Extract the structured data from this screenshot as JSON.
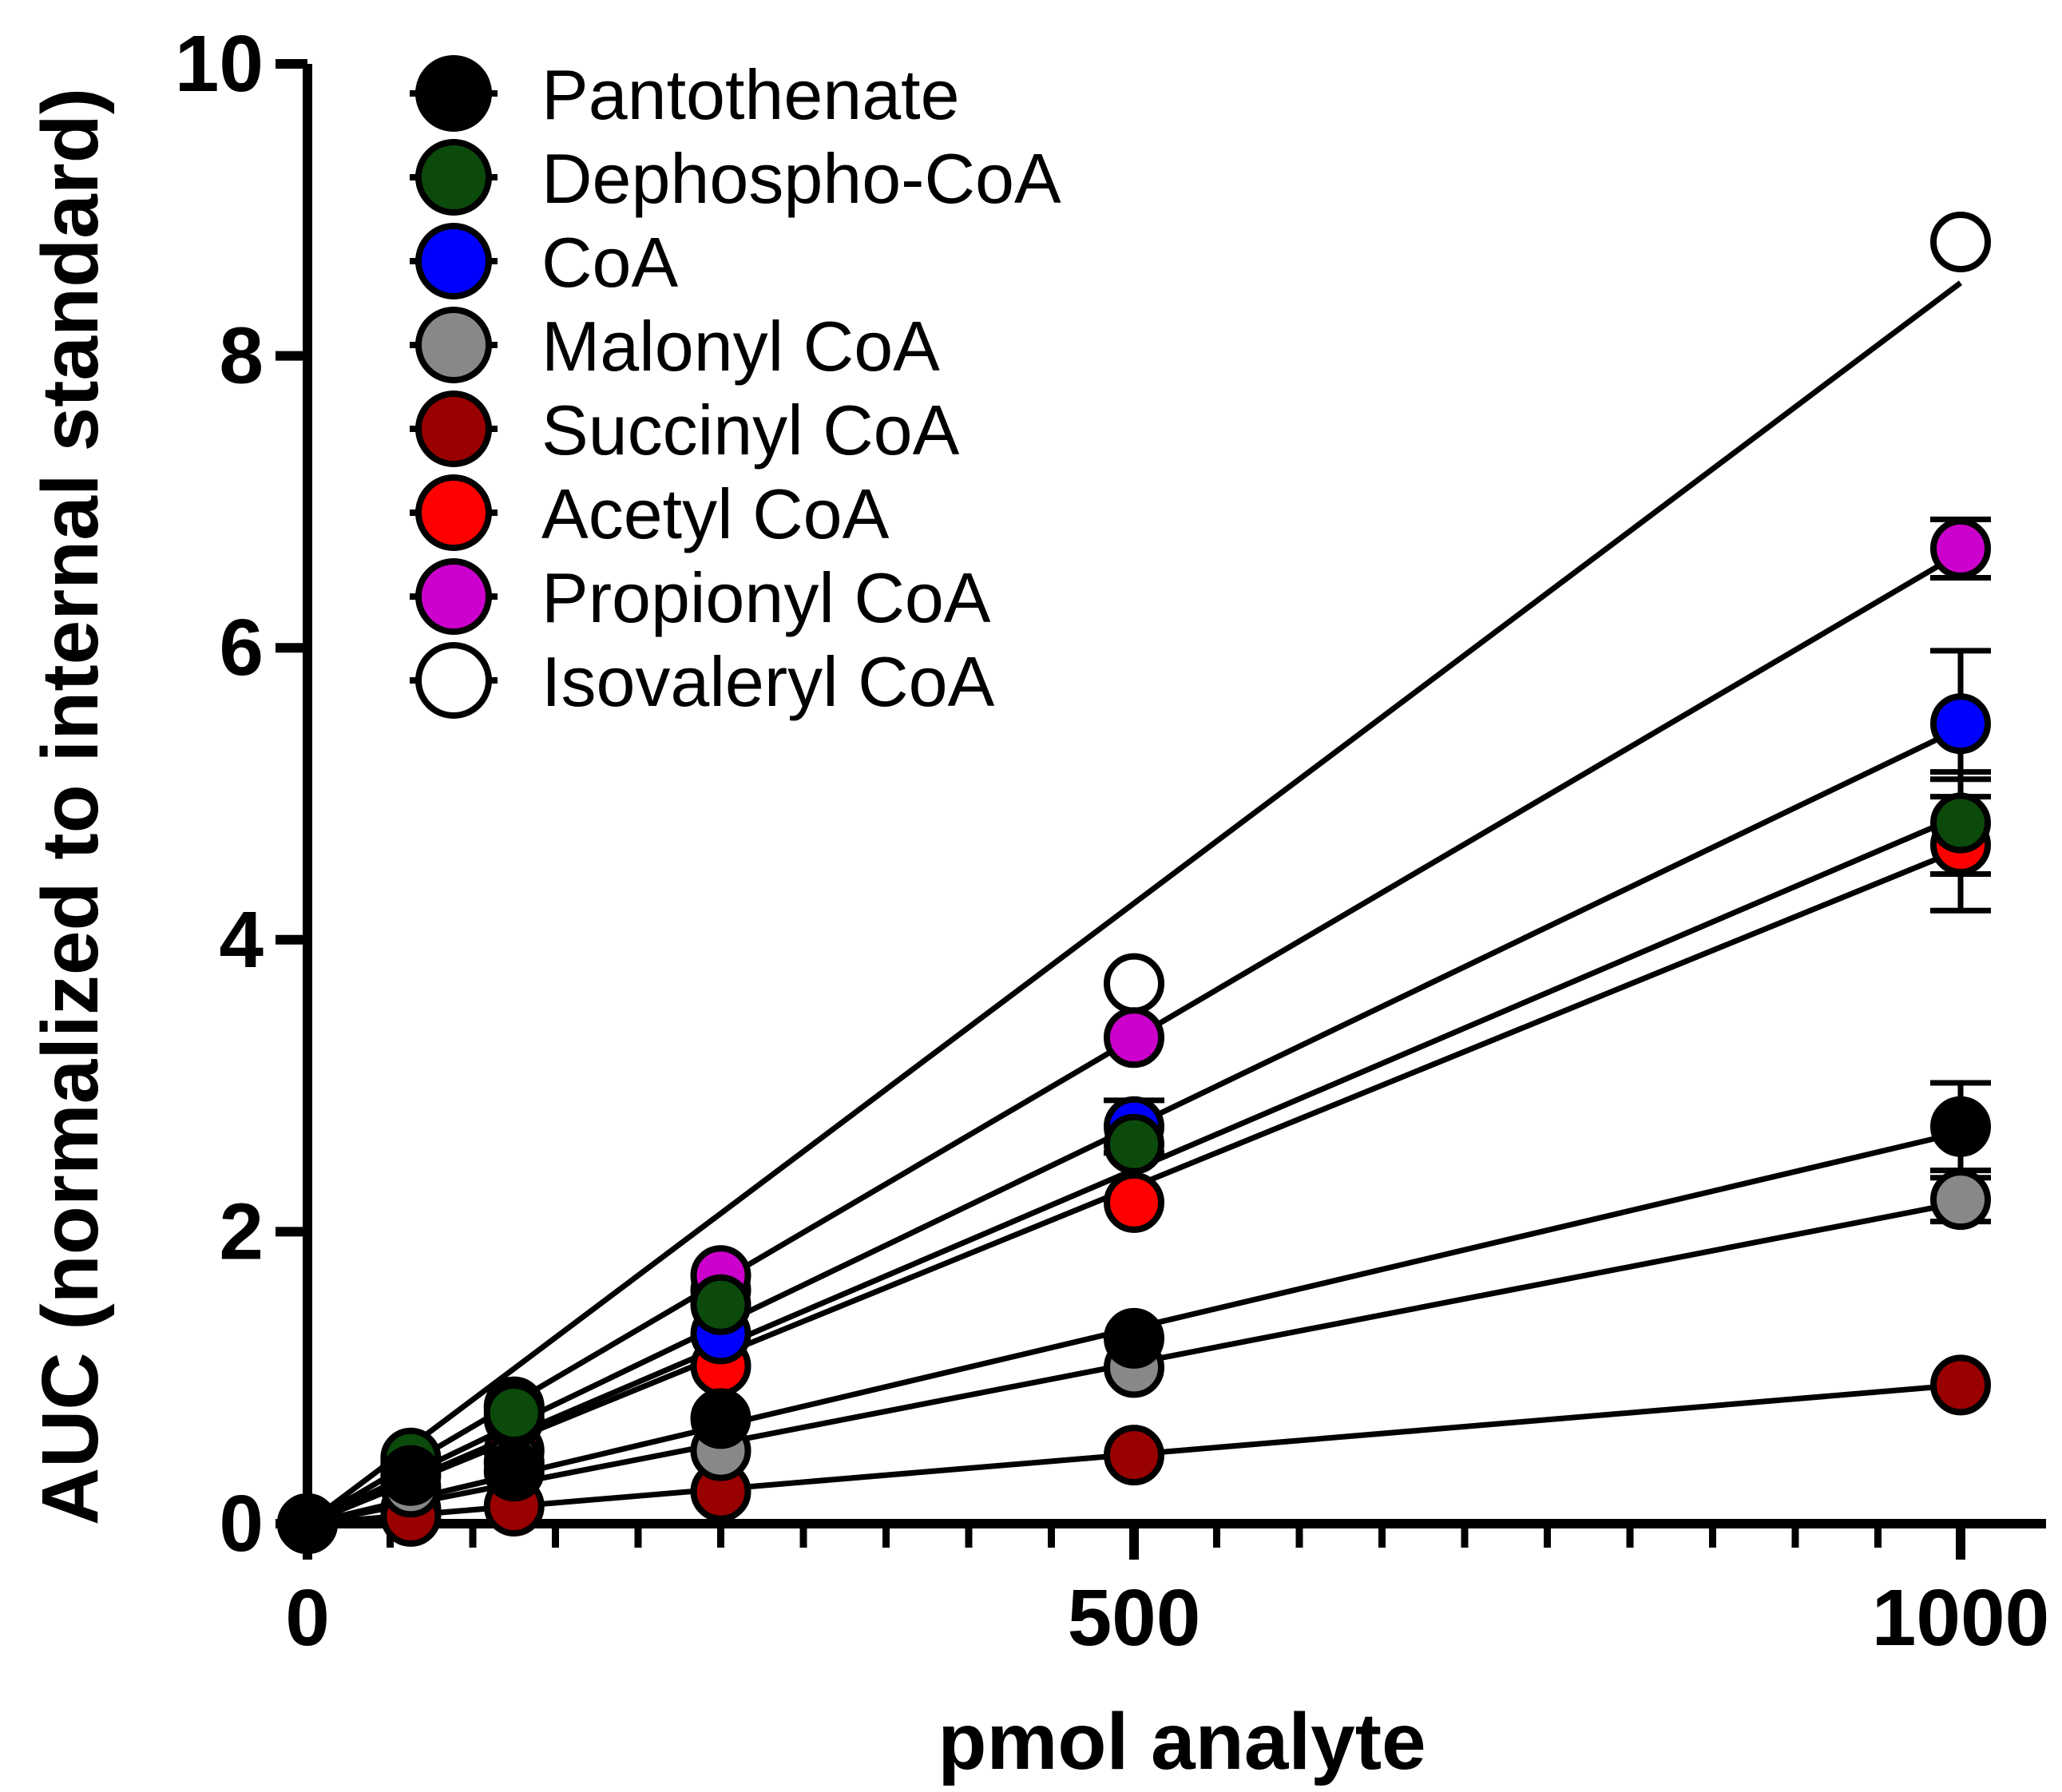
{
  "chart_data": {
    "type": "scatter",
    "title": "",
    "xlabel": "pmol analyte",
    "ylabel": "AUC (normalized to internal standard)",
    "xlim": [
      0,
      1050
    ],
    "ylim": [
      0,
      10
    ],
    "x_ticks": [
      0,
      500,
      1000
    ],
    "x_tick_labels": [
      "0",
      "500",
      "1000"
    ],
    "x_minor_step": 50,
    "y_ticks": [
      0,
      2,
      4,
      6,
      8,
      10
    ],
    "y_tick_labels": [
      "0",
      "2",
      "4",
      "6",
      "8",
      "10"
    ],
    "legend_position": "top-left",
    "x": [
      0,
      62.5,
      125,
      250,
      500,
      1000
    ],
    "series": [
      {
        "name": "Pantothenate",
        "color": "#000000",
        "values": [
          0,
          0.33,
          0.36,
          0.72,
          1.27,
          2.72
        ],
        "fit_slope": 0.00268,
        "error": [
          0,
          0,
          0,
          0,
          0,
          0.3
        ]
      },
      {
        "name": "Dephospho-CoA",
        "color": "#0b4a0b",
        "values": [
          0,
          0.45,
          0.76,
          1.5,
          2.6,
          4.8
        ],
        "fit_slope": 0.00485,
        "error": [
          0,
          0,
          0,
          0,
          0,
          0.35
        ]
      },
      {
        "name": "CoA",
        "color": "#0000ff",
        "values": [
          0,
          0.42,
          0.72,
          1.3,
          2.72,
          5.48
        ],
        "fit_slope": 0.00545,
        "error": [
          0,
          0,
          0,
          0,
          0.18,
          0.5
        ]
      },
      {
        "name": "Malonyl CoA",
        "color": "#888888",
        "values": [
          0,
          0.25,
          0.42,
          0.5,
          1.07,
          2.22
        ],
        "fit_slope": 0.0022,
        "error": [
          0,
          0,
          0,
          0,
          0,
          0.15
        ]
      },
      {
        "name": "Succinyl CoA",
        "color": "#990000",
        "values": [
          0,
          0.05,
          0.12,
          0.22,
          0.47,
          0.95
        ],
        "fit_slope": 0.00095,
        "error": [
          0,
          0,
          0,
          0,
          0,
          0
        ]
      },
      {
        "name": "Acetyl CoA",
        "color": "#ff0000",
        "values": [
          0,
          0.1,
          0.5,
          1.08,
          2.2,
          4.65
        ],
        "fit_slope": 0.00462,
        "error": [
          0,
          0,
          0,
          0,
          0,
          0.45
        ]
      },
      {
        "name": "Propionyl CoA",
        "color": "#cc00cc",
        "values": [
          0,
          0.4,
          0.8,
          1.7,
          3.33,
          6.68
        ],
        "fit_slope": 0.00665,
        "error": [
          0,
          0,
          0,
          0,
          0,
          0.2
        ]
      },
      {
        "name": "Isovaleryl CoA",
        "color": "#ffffff",
        "values": [
          0,
          0.4,
          0.8,
          1.6,
          3.7,
          8.78
        ],
        "fit_slope": 0.0085,
        "error": [
          0,
          0,
          0,
          0,
          0,
          0
        ]
      }
    ]
  }
}
